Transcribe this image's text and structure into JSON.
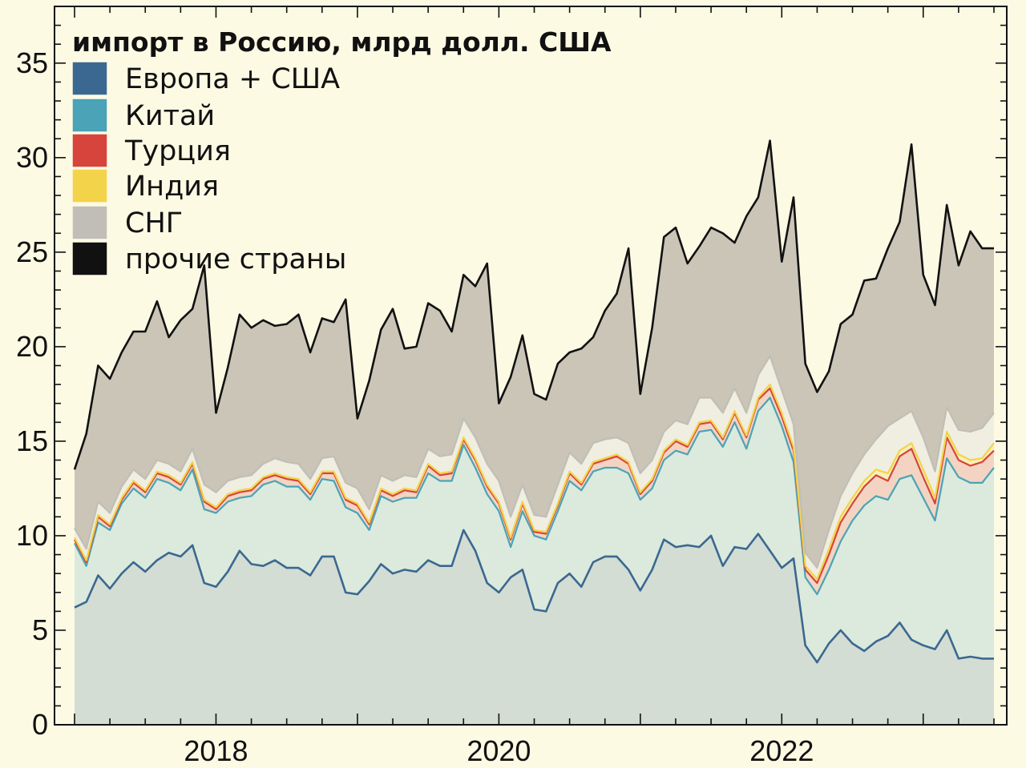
{
  "chart_data": {
    "type": "area",
    "title": "импорт в Россию, млрд долл. США",
    "xlabel": "",
    "ylabel": "",
    "x_start": "2017-01",
    "x_frequency": "monthly",
    "xlim": [
      "2017-01",
      "2023-07"
    ],
    "ylim": [
      0,
      38
    ],
    "x_ticks": [
      "2018",
      "2020",
      "2022"
    ],
    "y_ticks": [
      0,
      5,
      10,
      15,
      20,
      25,
      30,
      35
    ],
    "grid": false,
    "legend_position": "top-left",
    "stacked": true,
    "cumulative_lines": [
      {
        "name": "Европа + США",
        "color": "#3b6891",
        "fill": "#d3ddd3",
        "values": [
          6.2,
          6.5,
          7.9,
          7.2,
          8.0,
          8.6,
          8.1,
          8.7,
          9.1,
          8.9,
          9.5,
          7.5,
          7.3,
          8.1,
          9.2,
          8.5,
          8.4,
          8.7,
          8.3,
          8.3,
          7.9,
          8.9,
          8.9,
          7.0,
          6.9,
          7.6,
          8.5,
          8.0,
          8.2,
          8.1,
          8.7,
          8.4,
          8.4,
          10.3,
          9.2,
          7.5,
          7.0,
          7.8,
          8.2,
          6.1,
          6.0,
          7.5,
          8.0,
          7.3,
          8.6,
          8.9,
          8.9,
          8.2,
          7.1,
          8.2,
          9.8,
          9.4,
          9.5,
          9.4,
          10.0,
          8.4,
          9.4,
          9.3,
          10.1,
          9.2,
          8.3,
          8.8,
          4.2,
          3.3,
          4.3,
          5.0,
          4.3,
          3.9,
          4.4,
          4.7,
          5.4,
          4.5,
          4.2,
          4.0,
          5.0,
          3.5,
          3.6,
          3.5,
          3.5
        ]
      },
      {
        "name": "Китай",
        "color": "#4aa3b6",
        "fill": "#dbeadc",
        "values": [
          9.6,
          8.4,
          10.7,
          10.3,
          11.7,
          12.5,
          12.0,
          13.0,
          12.8,
          12.4,
          13.5,
          11.4,
          11.2,
          11.8,
          12.0,
          12.1,
          12.7,
          12.9,
          12.6,
          12.6,
          11.9,
          13.0,
          12.9,
          11.5,
          11.2,
          10.3,
          12.1,
          11.8,
          12.0,
          12.0,
          13.3,
          12.9,
          12.9,
          14.8,
          13.6,
          12.2,
          11.3,
          9.4,
          11.3,
          10.0,
          9.8,
          11.3,
          12.9,
          12.4,
          13.4,
          13.6,
          13.6,
          13.3,
          11.9,
          12.5,
          14.0,
          14.5,
          14.3,
          15.5,
          15.6,
          14.7,
          16.0,
          14.6,
          16.6,
          17.3,
          15.8,
          13.9,
          7.8,
          6.9,
          8.2,
          9.7,
          10.8,
          11.6,
          12.1,
          11.9,
          13.0,
          13.2,
          12.0,
          10.8,
          14.1,
          13.1,
          12.8,
          12.8,
          13.6
        ]
      },
      {
        "name": "Турция",
        "color": "#d6443b",
        "fill": "#f3d4c3",
        "values": [
          9.8,
          8.6,
          11.0,
          10.5,
          11.9,
          12.8,
          12.3,
          13.3,
          13.1,
          12.7,
          13.8,
          11.8,
          11.4,
          12.1,
          12.3,
          12.4,
          13.0,
          13.2,
          13.0,
          12.9,
          12.2,
          13.3,
          13.3,
          11.9,
          11.6,
          10.6,
          12.4,
          12.1,
          12.4,
          12.3,
          13.7,
          13.2,
          13.3,
          15.1,
          14.0,
          12.6,
          11.7,
          9.8,
          11.7,
          10.2,
          10.1,
          11.6,
          13.3,
          12.7,
          13.8,
          14.0,
          14.2,
          13.8,
          12.2,
          12.9,
          14.4,
          15.0,
          14.7,
          15.9,
          16.0,
          15.1,
          16.5,
          15.2,
          17.2,
          17.8,
          16.3,
          14.5,
          8.2,
          7.5,
          9.0,
          10.7,
          11.7,
          12.6,
          13.2,
          12.9,
          14.2,
          14.6,
          13.1,
          11.7,
          15.2,
          14.0,
          13.7,
          13.9,
          14.5
        ]
      },
      {
        "name": "Индия",
        "color": "#f3d34a",
        "fill": "#f8efb8",
        "values": [
          9.9,
          8.7,
          11.1,
          10.6,
          12.0,
          12.9,
          12.4,
          13.4,
          13.2,
          12.8,
          13.9,
          11.9,
          11.5,
          12.2,
          12.4,
          12.5,
          13.1,
          13.3,
          13.1,
          13.0,
          12.3,
          13.4,
          13.4,
          12.0,
          11.7,
          10.7,
          12.5,
          12.2,
          12.5,
          12.4,
          13.8,
          13.3,
          13.4,
          15.2,
          14.1,
          12.7,
          11.8,
          9.9,
          11.8,
          10.3,
          10.2,
          11.7,
          13.4,
          12.8,
          13.9,
          14.1,
          14.3,
          13.9,
          12.3,
          13.0,
          14.5,
          15.1,
          14.8,
          16.0,
          16.1,
          15.2,
          16.6,
          15.3,
          17.3,
          18.0,
          16.5,
          14.7,
          8.4,
          7.7,
          9.3,
          11.0,
          12.0,
          12.9,
          13.5,
          13.3,
          14.5,
          14.9,
          13.5,
          12.0,
          15.5,
          14.3,
          14.0,
          14.1,
          14.9
        ]
      },
      {
        "name": "СНГ",
        "color": "#c0beb6",
        "fill": "#efeee0",
        "values": [
          10.4,
          9.3,
          11.8,
          11.2,
          12.6,
          13.5,
          13.0,
          14.0,
          13.8,
          13.4,
          14.6,
          12.7,
          12.3,
          12.9,
          13.1,
          13.2,
          13.8,
          14.1,
          13.9,
          13.8,
          13.0,
          14.1,
          14.2,
          12.8,
          12.5,
          11.4,
          13.2,
          12.9,
          13.2,
          13.1,
          14.6,
          14.2,
          14.3,
          16.2,
          15.2,
          13.8,
          12.9,
          11.0,
          12.7,
          11.1,
          11.0,
          12.7,
          14.4,
          13.8,
          14.9,
          15.1,
          15.2,
          14.9,
          13.3,
          14.0,
          15.5,
          16.1,
          15.9,
          17.3,
          17.3,
          16.5,
          17.8,
          16.5,
          18.5,
          19.5,
          17.7,
          15.9,
          9.1,
          8.3,
          10.3,
          12.1,
          13.3,
          14.3,
          15.1,
          15.8,
          16.2,
          16.6,
          15.2,
          13.4,
          16.8,
          15.6,
          15.5,
          15.7,
          16.5
        ]
      },
      {
        "name": "прочие страны",
        "color": "#111111",
        "fill": "#cbc5b7",
        "values": [
          13.5,
          15.4,
          19.0,
          18.3,
          19.7,
          20.8,
          20.8,
          22.4,
          20.5,
          21.4,
          22.0,
          24.3,
          16.5,
          18.9,
          21.7,
          21.0,
          21.4,
          21.1,
          21.2,
          21.7,
          19.7,
          21.5,
          21.3,
          22.5,
          16.2,
          18.2,
          20.9,
          22.0,
          19.9,
          20.0,
          22.3,
          21.9,
          20.8,
          23.8,
          23.2,
          24.4,
          17.0,
          18.4,
          20.6,
          17.5,
          17.2,
          19.1,
          19.7,
          19.9,
          20.5,
          21.9,
          22.8,
          25.2,
          17.5,
          21.0,
          25.8,
          26.3,
          24.4,
          25.3,
          26.3,
          26.0,
          25.5,
          26.9,
          27.9,
          30.9,
          24.5,
          27.9,
          19.1,
          17.6,
          18.7,
          21.2,
          21.7,
          23.5,
          23.6,
          25.2,
          26.6,
          30.7,
          23.8,
          22.2,
          27.5,
          24.3,
          26.1,
          25.2,
          25.2
        ]
      }
    ]
  }
}
